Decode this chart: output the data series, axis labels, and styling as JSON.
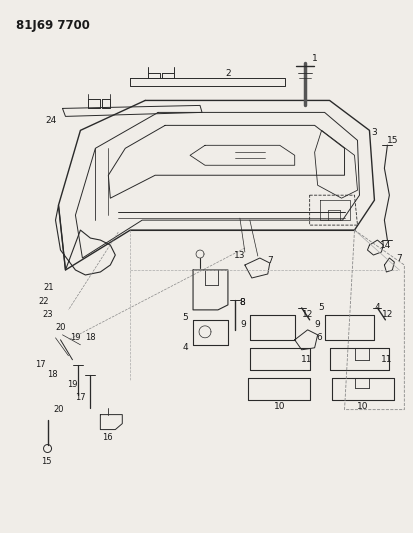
{
  "title": "81J69 7700",
  "bg_color": "#f0ede8",
  "line_color": "#2a2a2a",
  "text_color": "#1a1a1a",
  "figsize": [
    4.13,
    5.33
  ],
  "dpi": 100
}
